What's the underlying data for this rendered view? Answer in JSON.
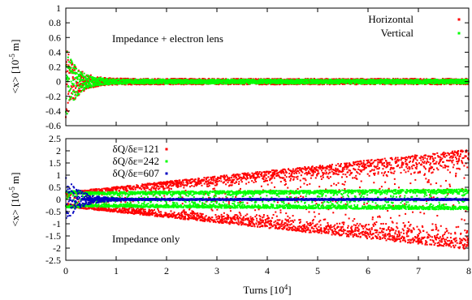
{
  "chart_data": [
    {
      "type": "scatter",
      "ylabel_main": "<x> [10",
      "ylabel_exp": "-5",
      "ylabel_unit": " m]",
      "ylim": [
        -0.6,
        1.0
      ],
      "yticks": [
        "1",
        "0.8",
        "0.6",
        "0.4",
        "0.2",
        "0",
        "-0.2",
        "-0.4",
        "-0.6"
      ],
      "ytick_values": [
        1.0,
        0.8,
        0.6,
        0.4,
        0.2,
        0.0,
        -0.2,
        -0.4,
        -0.6
      ],
      "xlim": [
        0,
        8
      ],
      "annotation": "Impedance + electron lens",
      "legend_position": "top-right",
      "series": [
        {
          "name": "Horizontal",
          "color": "#ff0000",
          "initial_amplitude": 0.5,
          "decay_turns": 0.22,
          "floor_amplitude": 0.04,
          "growth_rate": 0.0
        },
        {
          "name": "Vertical",
          "color": "#00ff00",
          "initial_amplitude": 0.5,
          "decay_turns": 0.22,
          "floor_amplitude": 0.03,
          "growth_rate": 0.0
        }
      ]
    },
    {
      "type": "scatter",
      "ylabel_main": "<x> [10",
      "ylabel_exp": "-5",
      "ylabel_unit": " m]",
      "ylim": [
        -2.5,
        2.5
      ],
      "yticks": [
        "2.5",
        "2",
        "1.5",
        "1",
        "0.5",
        "0",
        "-0.5",
        "-1",
        "-1.5",
        "-2",
        "-2.5"
      ],
      "ytick_values": [
        2.5,
        2.0,
        1.5,
        1.0,
        0.5,
        0.0,
        -0.5,
        -1.0,
        -1.5,
        -2.0,
        -2.5
      ],
      "xlim": [
        0,
        8
      ],
      "xticks": [
        "0",
        "1",
        "2",
        "3",
        "4",
        "5",
        "6",
        "7",
        "8"
      ],
      "xtick_values": [
        0,
        1,
        2,
        3,
        4,
        5,
        6,
        7,
        8
      ],
      "xlabel_main": "Turns [10",
      "xlabel_exp": "4",
      "xlabel_unit": "]",
      "annotation": "Impedance only",
      "legend_position": "top-left",
      "series": [
        {
          "name": "δQ/δε=121",
          "color": "#ff0000",
          "initial_amplitude": 0.3,
          "envelope_start": 0.3,
          "envelope_end": 2.05
        },
        {
          "name": "δQ/δε=242",
          "color": "#00ff00",
          "initial_amplitude": 0.35,
          "envelope_start": 0.3,
          "envelope_end": 0.42
        },
        {
          "name": "δQ/δε=607",
          "color": "#0000c0",
          "initial_amplitude": 0.9,
          "decay_turns": 0.3,
          "floor_amplitude": 0.03
        }
      ]
    }
  ]
}
